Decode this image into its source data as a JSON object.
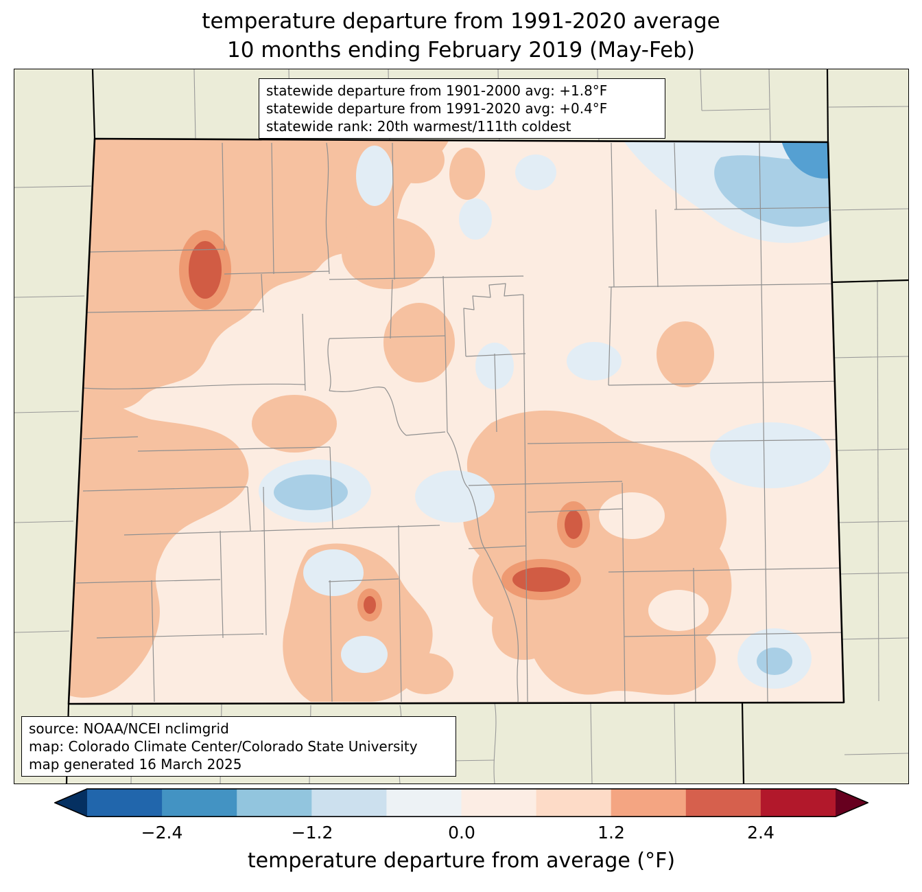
{
  "title": {
    "line1": "temperature departure from 1991-2020 average",
    "line2": "10 months ending February 2019 (May-Feb)"
  },
  "stats_box": {
    "line1": "statewide departure from 1901-2000 avg: +1.8°F",
    "line2": "statewide departure from 1991-2020 avg: +0.4°F",
    "line3": "statewide rank: 20th warmest/111th coldest"
  },
  "source_box": {
    "line1": "source: NOAA/NCEI nclimgrid",
    "line2": "map: Colorado Climate Center/Colorado State University",
    "line3": "map generated 16 March 2025"
  },
  "colorbar": {
    "label": "temperature departure from average (°F)",
    "ticks": [
      "−2.4",
      "−1.2",
      "0.0",
      "1.2",
      "2.4"
    ],
    "segments": [
      "#2166ac",
      "#4393c3",
      "#92c5de",
      "#cce0ee",
      "#edf2f5",
      "#fcede4",
      "#fddbc7",
      "#f4a582",
      "#d6604d",
      "#b2182b"
    ],
    "left_arrow_color": "#053061",
    "right_arrow_color": "#67001f"
  },
  "map": {
    "palette": {
      "outside": "#ebecd8",
      "base": "#fcece1",
      "warm1": "#f6c1a0",
      "warm2": "#ee9a72",
      "warm3": "#d15c44",
      "cool1": "#e2edf5",
      "cool2": "#a9cfe6",
      "cool3": "#55a0d2"
    }
  }
}
